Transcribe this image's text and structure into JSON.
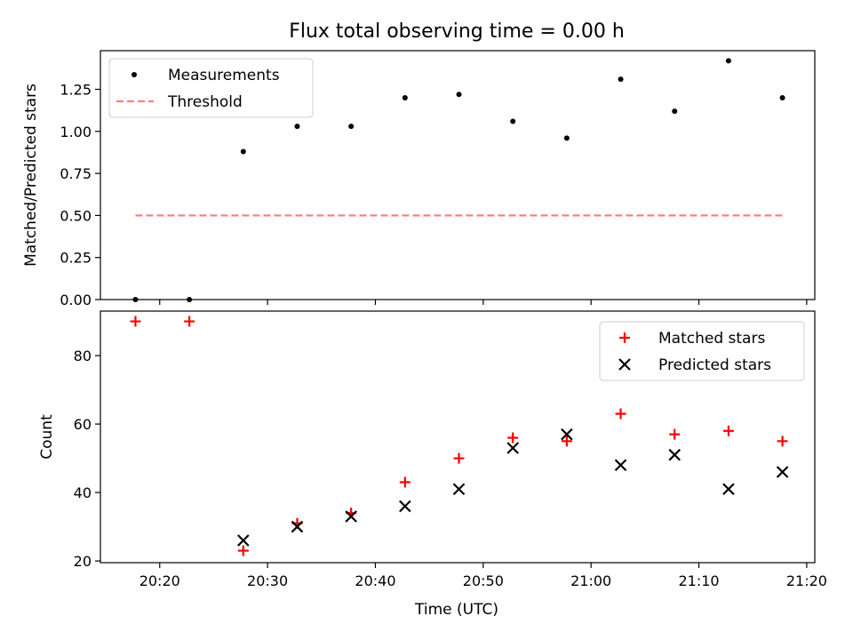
{
  "figure": {
    "title": "Flux total observing time = 0.00 h",
    "xlabel": "Time (UTC)"
  },
  "chart_data": [
    {
      "type": "scatter",
      "title": "Flux total observing time = 0.00 h",
      "xlabel": "",
      "ylabel": "Matched/Predicted stars",
      "xlim": [
        "20:14:30",
        "21:20:45"
      ],
      "ylim": [
        0,
        1.48
      ],
      "yticks": [
        0.0,
        0.25,
        0.5,
        0.75,
        1.0,
        1.25
      ],
      "ytick_labels": [
        "0.00",
        "0.25",
        "0.50",
        "0.75",
        "1.00",
        "1.25"
      ],
      "legend_position": "top-left",
      "series": [
        {
          "name": "Measurements",
          "marker": "dot",
          "color": "#000000",
          "x": [
            "20:17:45",
            "20:22:45",
            "20:27:45",
            "20:32:45",
            "20:37:45",
            "20:42:45",
            "20:47:45",
            "20:52:45",
            "20:57:45",
            "21:02:45",
            "21:07:45",
            "21:12:45",
            "21:17:45"
          ],
          "y": [
            0.0,
            0.0,
            0.88,
            1.03,
            1.03,
            1.2,
            1.22,
            1.06,
            0.96,
            1.31,
            1.12,
            1.42,
            1.2
          ]
        },
        {
          "name": "Threshold",
          "marker": "dashed-line",
          "color": "#ff7f7f",
          "x": [
            "20:17:45",
            "21:17:45"
          ],
          "y": [
            0.5,
            0.5
          ]
        }
      ]
    },
    {
      "type": "scatter",
      "title": "",
      "xlabel": "Time (UTC)",
      "ylabel": "Count",
      "xlim": [
        "20:14:30",
        "21:20:45"
      ],
      "ylim": [
        19.5,
        93
      ],
      "xticks": [
        "20:20",
        "20:30",
        "20:40",
        "20:50",
        "21:00",
        "21:10",
        "21:20"
      ],
      "yticks": [
        20,
        40,
        60,
        80
      ],
      "ytick_labels": [
        "20",
        "40",
        "60",
        "80"
      ],
      "legend_position": "top-right",
      "series": [
        {
          "name": "Matched stars",
          "marker": "plus",
          "color": "#ff0000",
          "x": [
            "20:17:45",
            "20:22:45",
            "20:27:45",
            "20:32:45",
            "20:37:45",
            "20:42:45",
            "20:47:45",
            "20:52:45",
            "20:57:45",
            "21:02:45",
            "21:07:45",
            "21:12:45",
            "21:17:45"
          ],
          "y": [
            90,
            90,
            23,
            31,
            34,
            43,
            50,
            56,
            55,
            63,
            57,
            58,
            55
          ]
        },
        {
          "name": "Predicted stars",
          "marker": "x",
          "color": "#000000",
          "x": [
            "20:27:45",
            "20:32:45",
            "20:37:45",
            "20:42:45",
            "20:47:45",
            "20:52:45",
            "20:57:45",
            "21:02:45",
            "21:07:45",
            "21:12:45",
            "21:17:45"
          ],
          "y": [
            26,
            30,
            33,
            36,
            41,
            53,
            57,
            48,
            51,
            41,
            46
          ]
        }
      ]
    }
  ]
}
